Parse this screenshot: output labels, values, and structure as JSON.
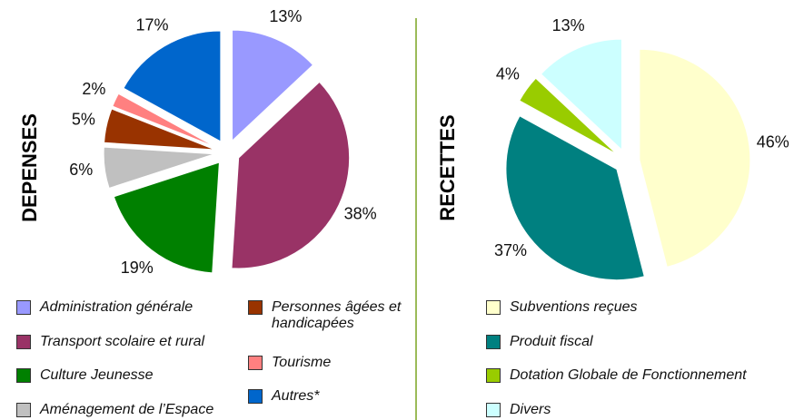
{
  "chart_data": [
    {
      "type": "pie",
      "title": "DEPENSES",
      "categories": [
        "Administration générale",
        "Transport scolaire et rural",
        "Culture Jeunesse",
        "Aménagement de l’Espace",
        "Personnes âgées et handicapées",
        "Tourisme",
        "Autres*"
      ],
      "values": [
        13,
        38,
        19,
        6,
        5,
        2,
        17
      ],
      "value_labels": [
        "13%",
        "38%",
        "19%",
        "6%",
        "5%",
        "2%",
        "17%"
      ],
      "colors": [
        "#9999ff",
        "#993366",
        "#008000",
        "#c0c0c0",
        "#993300",
        "#ff8080",
        "#0066cc"
      ]
    },
    {
      "type": "pie",
      "title": "RECETTES",
      "categories": [
        "Subventions reçues",
        "Produit fiscal",
        "Dotation Globale de Fonctionnement",
        "Divers"
      ],
      "values": [
        46,
        37,
        4,
        13
      ],
      "value_labels": [
        "46%",
        "37%",
        "4%",
        "13%"
      ],
      "colors": [
        "#ffffcc",
        "#008080",
        "#99cc00",
        "#ccffff"
      ]
    }
  ]
}
